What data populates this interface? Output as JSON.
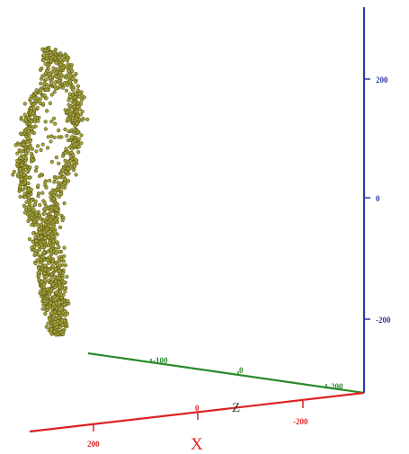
{
  "colors": {
    "x_axis": "#dd2222",
    "y_axis": "#2b3aa8",
    "z_axis": "#2a8a2a",
    "points_fill": "#a8a440",
    "points_stroke": "#5b5a12"
  },
  "chart_data": {
    "type": "scatter",
    "projection": "3d",
    "axes": {
      "x": {
        "name": "X",
        "ticks": [
          200,
          0,
          -200
        ]
      },
      "z": {
        "name": "Z",
        "ticks": [
          -100,
          0,
          -200
        ]
      },
      "y": {
        "name": "",
        "ticks": [
          200,
          0,
          -200
        ]
      }
    },
    "series": [
      {
        "shape": "twisted loop",
        "x_range": [
          150,
          260
        ],
        "y_range": [
          -250,
          290
        ],
        "z_range": [
          -120,
          -60
        ],
        "point_count": 1400
      }
    ]
  }
}
